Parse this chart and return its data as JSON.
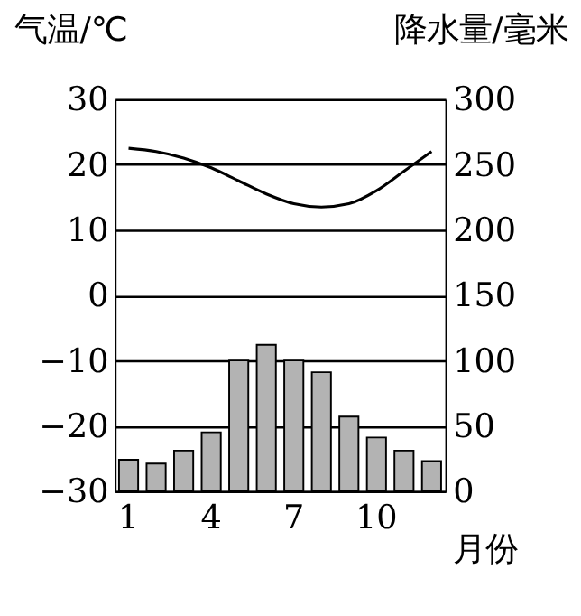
{
  "chart_data": {
    "type": "bar",
    "categories": [
      "1",
      null,
      null,
      "4",
      null,
      null,
      "7",
      null,
      null,
      "10",
      null,
      null
    ],
    "xlabel": "月份",
    "ylabel": "气温/℃",
    "y2label": "降水量/毫米",
    "series": [
      {
        "type": "line",
        "color": "#000000",
        "values": [
          22.5,
          22,
          21,
          19.5,
          17.5,
          15.5,
          14,
          13.5,
          14,
          16,
          19,
          22
        ]
      },
      {
        "axis": "y2",
        "color": "#b3b3b3",
        "values": [
          24,
          21,
          31,
          45,
          100,
          112,
          100,
          91,
          57,
          41,
          31,
          23
        ]
      }
    ],
    "ylim": [
      -30,
      30
    ],
    "yticks": [
      -30,
      -20,
      -10,
      0,
      10,
      20,
      30
    ],
    "y2lim": [
      0,
      300
    ],
    "y2ticks": [
      0,
      50,
      100,
      150,
      200,
      250,
      300
    ],
    "grid": "y"
  }
}
